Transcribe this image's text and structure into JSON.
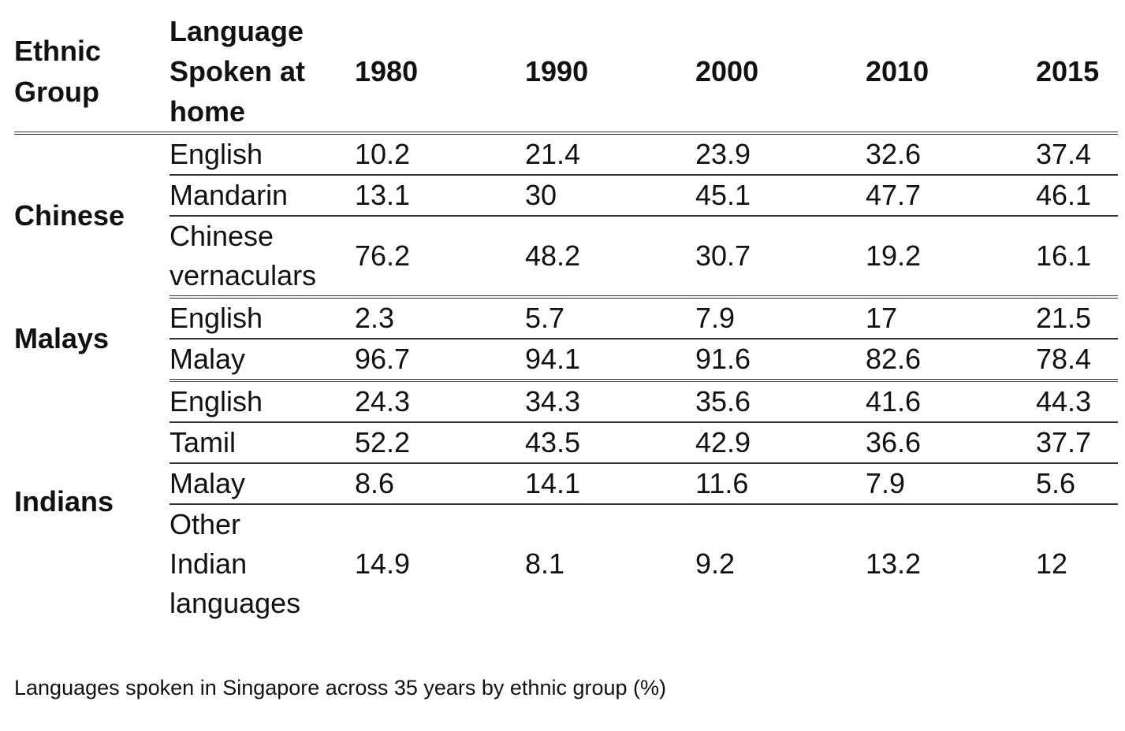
{
  "chart_data": {
    "type": "table",
    "caption": "Languages spoken in Singapore across 35 years by ethnic group (%)",
    "columns": [
      "Ethnic Group",
      "Language Spoken at home",
      "1980",
      "1990",
      "2000",
      "2010",
      "2015"
    ],
    "years": [
      "1980",
      "1990",
      "2000",
      "2010",
      "2015"
    ],
    "groups": [
      {
        "name": "Chinese",
        "rows": [
          {
            "language": "English",
            "values": [
              "10.2",
              "21.4",
              "23.9",
              "32.6",
              "37.4"
            ]
          },
          {
            "language": "Mandarin",
            "values": [
              "13.1",
              "30",
              "45.1",
              "47.7",
              "46.1"
            ]
          },
          {
            "language": "Chinese vernaculars",
            "values": [
              "76.2",
              "48.2",
              "30.7",
              "19.2",
              "16.1"
            ]
          }
        ]
      },
      {
        "name": "Malays",
        "rows": [
          {
            "language": "English",
            "values": [
              "2.3",
              "5.7",
              "7.9",
              "17",
              "21.5"
            ]
          },
          {
            "language": "Malay",
            "values": [
              "96.7",
              "94.1",
              "91.6",
              "82.6",
              "78.4"
            ]
          }
        ]
      },
      {
        "name": "Indians",
        "rows": [
          {
            "language": "English",
            "values": [
              "24.3",
              "34.3",
              "35.6",
              "41.6",
              "44.3"
            ]
          },
          {
            "language": "Tamil",
            "values": [
              "52.2",
              "43.5",
              "42.9",
              "36.6",
              "37.7"
            ]
          },
          {
            "language": "Malay",
            "values": [
              "8.6",
              "14.1",
              "11.6",
              "7.9",
              "5.6"
            ]
          },
          {
            "language": "Other Indian languages",
            "values": [
              "14.9",
              "8.1",
              "9.2",
              "13.2",
              "12"
            ]
          }
        ]
      }
    ]
  }
}
